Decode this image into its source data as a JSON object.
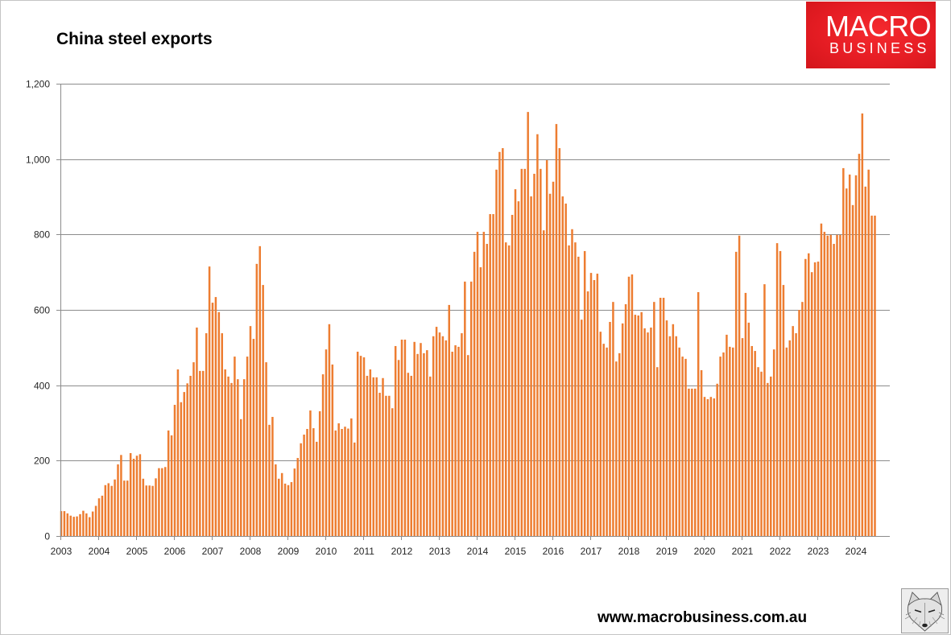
{
  "logo": {
    "line1": "MACRO",
    "line2": "BUSINESS",
    "bg_color": "#e61d24"
  },
  "footer": {
    "url": "www.macrobusiness.com.au"
  },
  "fox_image": {
    "icon": "fox-sketch-icon"
  },
  "chart_data": {
    "type": "bar",
    "title": "China steel exports",
    "xlabel": "",
    "ylabel": "",
    "ylim": [
      0,
      1200
    ],
    "y_tick_values": [
      0,
      200,
      400,
      600,
      800,
      1000,
      1200
    ],
    "y_ticks": [
      "0",
      "200",
      "400",
      "600",
      "800",
      "1,000",
      "1,200"
    ],
    "x_ticks": [
      "2003",
      "2004",
      "2005",
      "2006",
      "2007",
      "2008",
      "2009",
      "2010",
      "2011",
      "2012",
      "2013",
      "2014",
      "2015",
      "2016",
      "2017",
      "2018",
      "2019",
      "2020",
      "2021",
      "2022",
      "2023",
      "2024"
    ],
    "grid": true,
    "legend": "none",
    "bar_color": "#ED7D31",
    "x": [
      "2003-01",
      "2003-02",
      "2003-03",
      "2003-04",
      "2003-05",
      "2003-06",
      "2003-07",
      "2003-08",
      "2003-09",
      "2003-10",
      "2003-11",
      "2003-12",
      "2004-01",
      "2004-02",
      "2004-03",
      "2004-04",
      "2004-05",
      "2004-06",
      "2004-07",
      "2004-08",
      "2004-09",
      "2004-10",
      "2004-11",
      "2004-12",
      "2005-01",
      "2005-02",
      "2005-03",
      "2005-04",
      "2005-05",
      "2005-06",
      "2005-07",
      "2005-08",
      "2005-09",
      "2005-10",
      "2005-11",
      "2005-12",
      "2006-01",
      "2006-02",
      "2006-03",
      "2006-04",
      "2006-05",
      "2006-06",
      "2006-07",
      "2006-08",
      "2006-09",
      "2006-10",
      "2006-11",
      "2006-12",
      "2007-01",
      "2007-02",
      "2007-03",
      "2007-04",
      "2007-05",
      "2007-06",
      "2007-07",
      "2007-08",
      "2007-09",
      "2007-10",
      "2007-11",
      "2007-12",
      "2008-01",
      "2008-02",
      "2008-03",
      "2008-04",
      "2008-05",
      "2008-06",
      "2008-07",
      "2008-08",
      "2008-09",
      "2008-10",
      "2008-11",
      "2008-12",
      "2009-01",
      "2009-02",
      "2009-03",
      "2009-04",
      "2009-05",
      "2009-06",
      "2009-07",
      "2009-08",
      "2009-09",
      "2009-10",
      "2009-11",
      "2009-12",
      "2010-01",
      "2010-02",
      "2010-03",
      "2010-04",
      "2010-05",
      "2010-06",
      "2010-07",
      "2010-08",
      "2010-09",
      "2010-10",
      "2010-11",
      "2010-12",
      "2011-01",
      "2011-02",
      "2011-03",
      "2011-04",
      "2011-05",
      "2011-06",
      "2011-07",
      "2011-08",
      "2011-09",
      "2011-10",
      "2011-11",
      "2011-12",
      "2012-01",
      "2012-02",
      "2012-03",
      "2012-04",
      "2012-05",
      "2012-06",
      "2012-07",
      "2012-08",
      "2012-09",
      "2012-10",
      "2012-11",
      "2012-12",
      "2013-01",
      "2013-02",
      "2013-03",
      "2013-04",
      "2013-05",
      "2013-06",
      "2013-07",
      "2013-08",
      "2013-09",
      "2013-10",
      "2013-11",
      "2013-12",
      "2014-01",
      "2014-02",
      "2014-03",
      "2014-04",
      "2014-05",
      "2014-06",
      "2014-07",
      "2014-08",
      "2014-09",
      "2014-10",
      "2014-11",
      "2014-12",
      "2015-01",
      "2015-02",
      "2015-03",
      "2015-04",
      "2015-05",
      "2015-06",
      "2015-07",
      "2015-08",
      "2015-09",
      "2015-10",
      "2015-11",
      "2015-12",
      "2016-01",
      "2016-02",
      "2016-03",
      "2016-04",
      "2016-05",
      "2016-06",
      "2016-07",
      "2016-08",
      "2016-09",
      "2016-10",
      "2016-11",
      "2016-12",
      "2017-01",
      "2017-02",
      "2017-03",
      "2017-04",
      "2017-05",
      "2017-06",
      "2017-07",
      "2017-08",
      "2017-09",
      "2017-10",
      "2017-11",
      "2017-12",
      "2018-01",
      "2018-02",
      "2018-03",
      "2018-04",
      "2018-05",
      "2018-06",
      "2018-07",
      "2018-08",
      "2018-09",
      "2018-10",
      "2018-11",
      "2018-12",
      "2019-01",
      "2019-02",
      "2019-03",
      "2019-04",
      "2019-05",
      "2019-06",
      "2019-07",
      "2019-08",
      "2019-09",
      "2019-10",
      "2019-11",
      "2019-12",
      "2020-01",
      "2020-02",
      "2020-03",
      "2020-04",
      "2020-05",
      "2020-06",
      "2020-07",
      "2020-08",
      "2020-09",
      "2020-10",
      "2020-11",
      "2020-12",
      "2021-01",
      "2021-02",
      "2021-03",
      "2021-04",
      "2021-05",
      "2021-06",
      "2021-07",
      "2021-08",
      "2021-09",
      "2021-10",
      "2021-11",
      "2021-12",
      "2022-01",
      "2022-02",
      "2022-03",
      "2022-04",
      "2022-05",
      "2022-06",
      "2022-07",
      "2022-08",
      "2022-09",
      "2022-10",
      "2022-11",
      "2022-12",
      "2023-01",
      "2023-02",
      "2023-03",
      "2023-04",
      "2023-05",
      "2023-06",
      "2023-07",
      "2023-08",
      "2023-09",
      "2023-10",
      "2023-11",
      "2023-12",
      "2024-01",
      "2024-02",
      "2024-03",
      "2024-04",
      "2024-05",
      "2024-06",
      "2024-07"
    ],
    "values": [
      66,
      66,
      60,
      54,
      51,
      52,
      58,
      67,
      60,
      50,
      65,
      80,
      100,
      107,
      135,
      140,
      133,
      150,
      190,
      215,
      147,
      147,
      220,
      205,
      213,
      217,
      152,
      134,
      134,
      133,
      153,
      180,
      180,
      183,
      280,
      267,
      348,
      442,
      355,
      382,
      405,
      425,
      461,
      553,
      438,
      438,
      538,
      715,
      619,
      634,
      594,
      538,
      442,
      423,
      406,
      476,
      416,
      310,
      416,
      476,
      557,
      523,
      722,
      769,
      666,
      461,
      295,
      316,
      190,
      152,
      167,
      139,
      135,
      143,
      179,
      207,
      246,
      269,
      284,
      333,
      286,
      250,
      331,
      429,
      495,
      562,
      455,
      280,
      299,
      284,
      290,
      285,
      312,
      248,
      489,
      478,
      474,
      425,
      442,
      421,
      421,
      380,
      419,
      372,
      372,
      339,
      504,
      467,
      521,
      521,
      433,
      425,
      515,
      483,
      512,
      485,
      493,
      423,
      530,
      555,
      540,
      530,
      519,
      613,
      489,
      506,
      502,
      538,
      675,
      480,
      675,
      754,
      807,
      713,
      807,
      775,
      854,
      854,
      972,
      1019,
      1029,
      779,
      771,
      852,
      920,
      888,
      974,
      974,
      1125,
      901,
      961,
      1066,
      974,
      811,
      997,
      908,
      940,
      1093,
      1029,
      901,
      882,
      771,
      814,
      779,
      741,
      574,
      756,
      649,
      698,
      679,
      696,
      542,
      510,
      500,
      568,
      621,
      463,
      485,
      564,
      615,
      688,
      694,
      587,
      585,
      594,
      551,
      540,
      553,
      621,
      448,
      632,
      632,
      572,
      530,
      562,
      530,
      500,
      476,
      470,
      391,
      391,
      391,
      647,
      440,
      369,
      363,
      369,
      365,
      404,
      476,
      487,
      534,
      502,
      500,
      754,
      797,
      525,
      645,
      566,
      504,
      491,
      448,
      436,
      668,
      406,
      423,
      495,
      777,
      756,
      666,
      500,
      519,
      557,
      538,
      600,
      621,
      735,
      750,
      700,
      726,
      728,
      829,
      807,
      797,
      799,
      775,
      799,
      799,
      976,
      922,
      959,
      878,
      957,
      1014,
      1121,
      927,
      972,
      850,
      850
    ]
  }
}
